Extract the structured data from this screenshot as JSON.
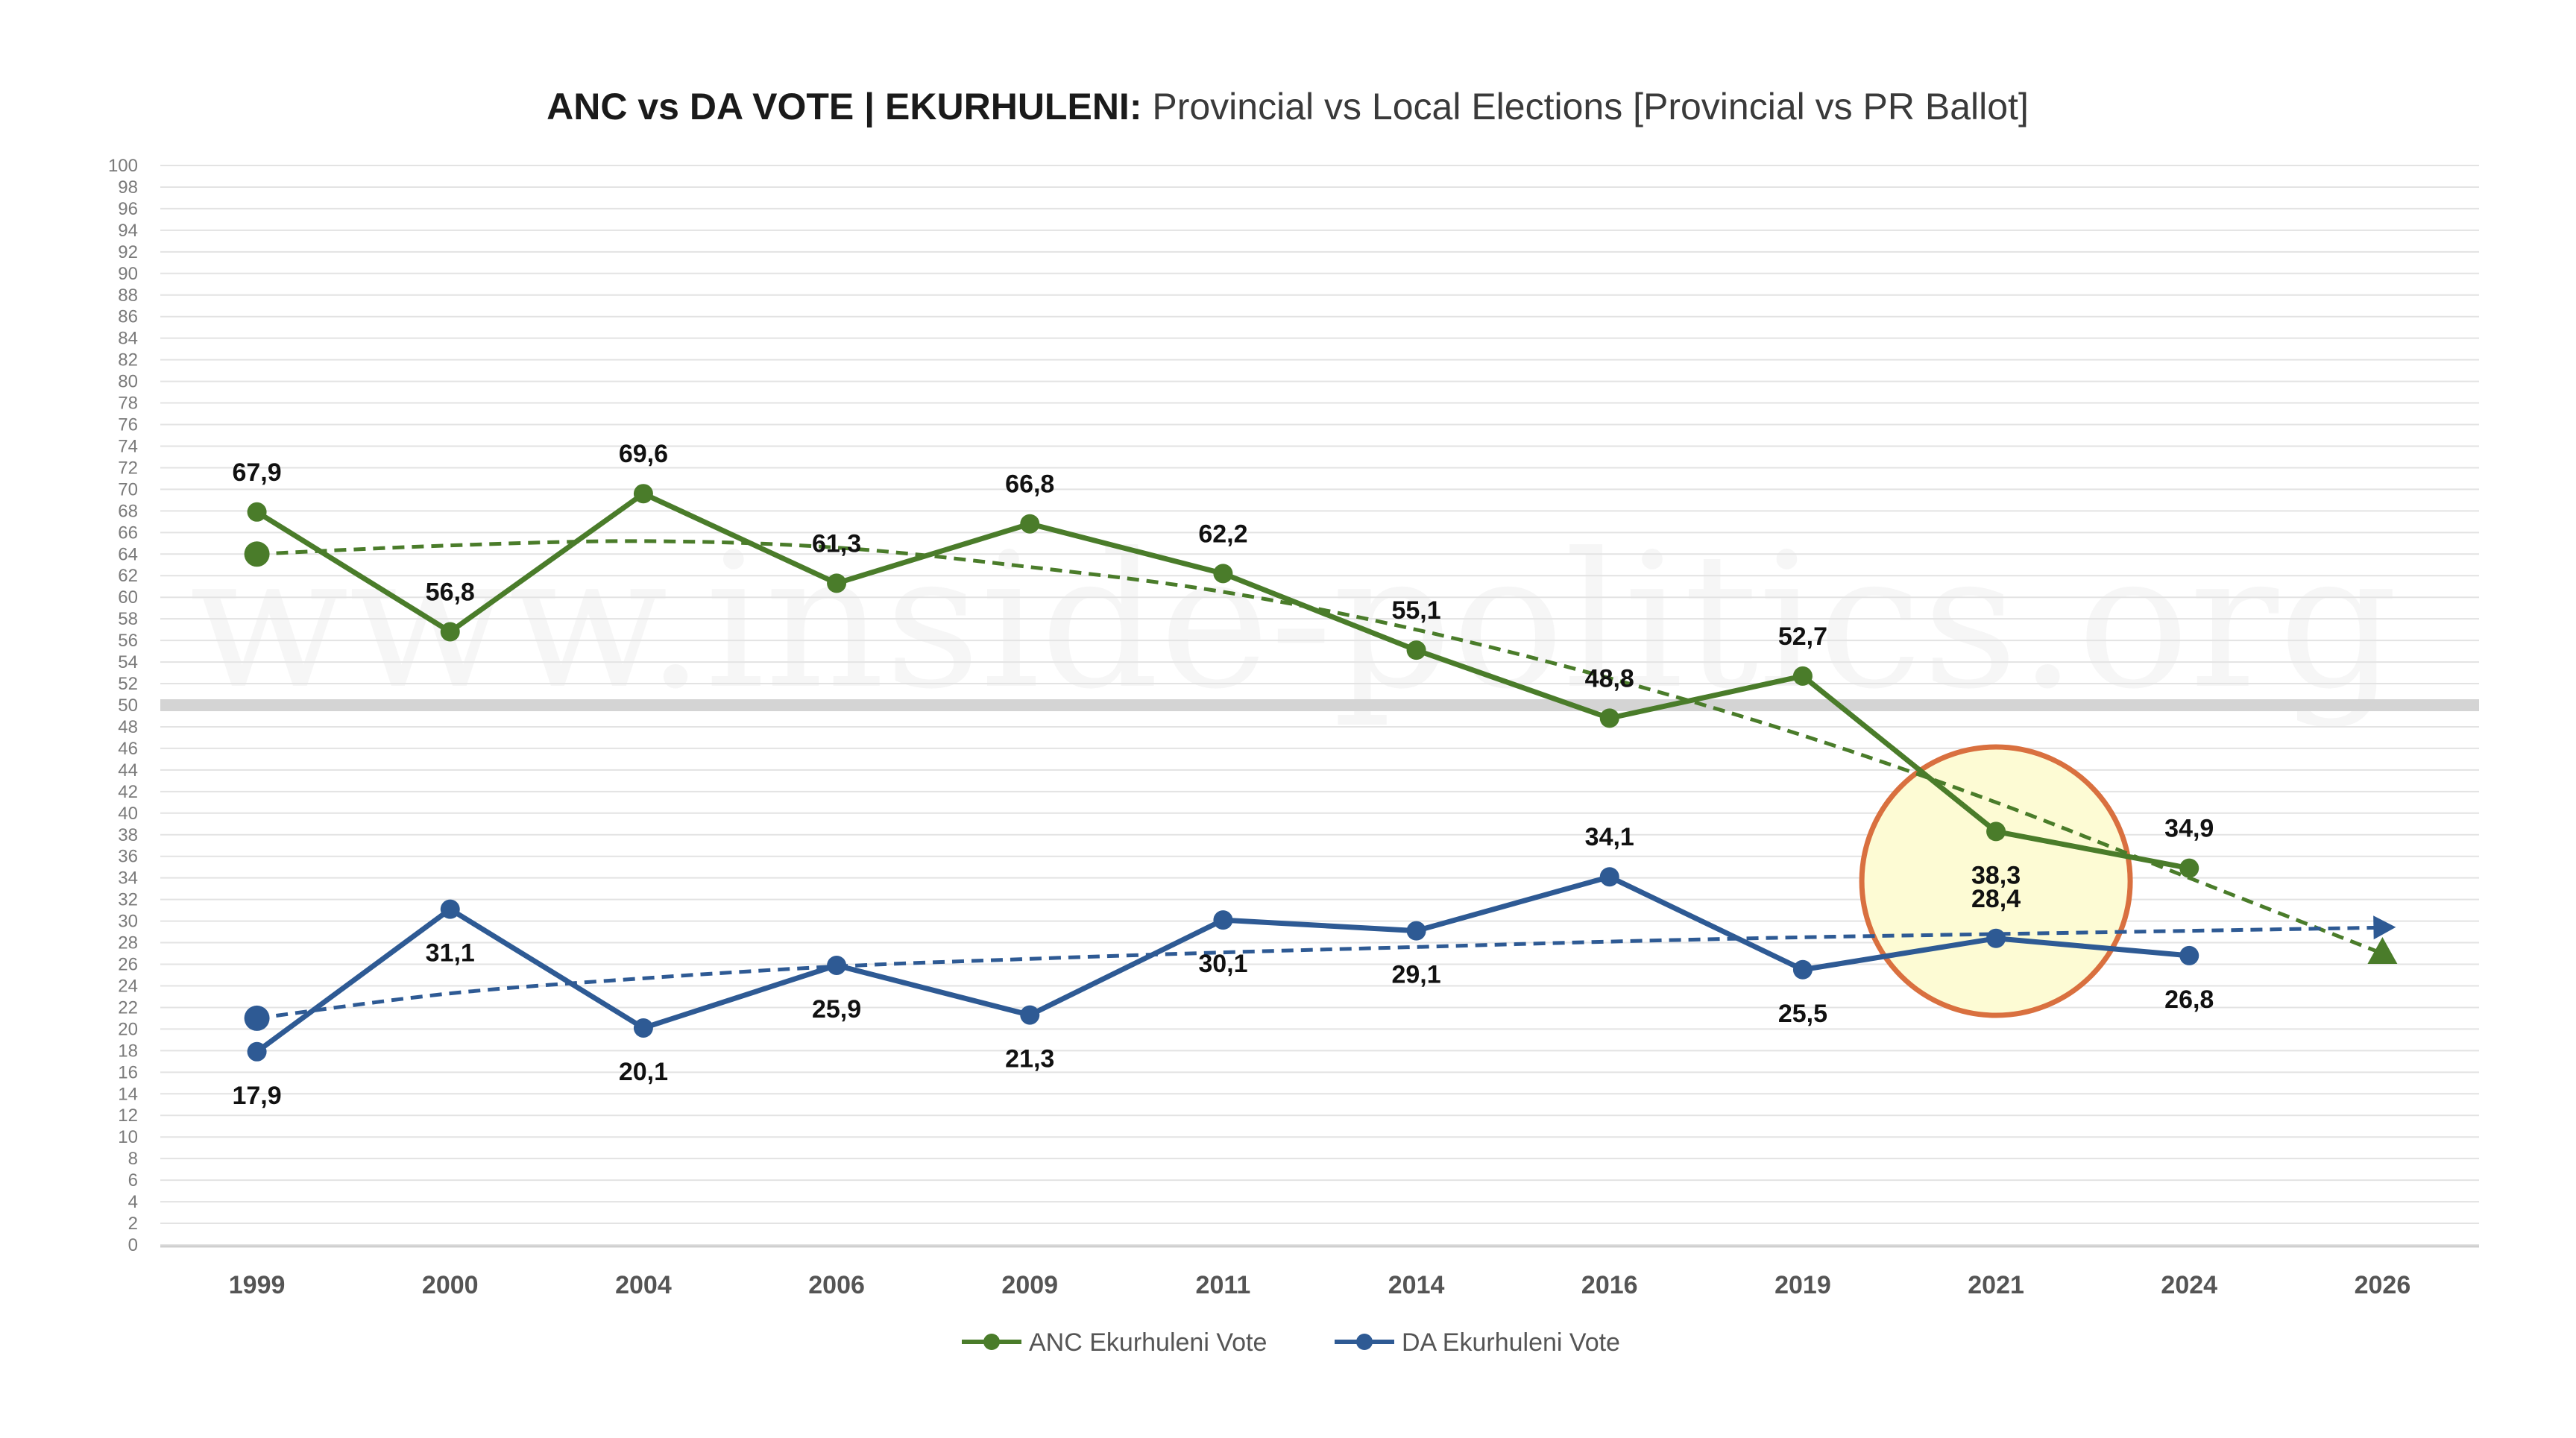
{
  "chart_data": {
    "type": "line",
    "title_bold": "ANC vs DA VOTE | EKURHULENI:",
    "title_regular": " Provincial vs Local Elections [Provincial vs PR Ballot]",
    "watermark": "www.inside-politics.org",
    "categories": [
      "1999",
      "2000",
      "2004",
      "2006",
      "2009",
      "2011",
      "2014",
      "2016",
      "2019",
      "2021",
      "2024",
      "2026"
    ],
    "ylim": [
      0,
      100
    ],
    "ytick_step": 2,
    "series": [
      {
        "name": "ANC Ekurhuleni Vote",
        "color": "#4a7c2a",
        "values": [
          67.9,
          56.8,
          69.6,
          61.3,
          66.8,
          62.2,
          55.1,
          48.8,
          52.7,
          38.3,
          34.9,
          null
        ],
        "labels": [
          "67,9",
          "56,8",
          "69,6",
          "61,3",
          "66,8",
          "62,2",
          "55,1",
          "48,8",
          "52,7",
          "38,3",
          "34,9",
          ""
        ],
        "label_pos": [
          "above",
          "above",
          "above",
          "above",
          "above",
          "above",
          "above",
          "above",
          "above",
          "below",
          "above",
          ""
        ],
        "trend": [
          64.0,
          64.8,
          65.2,
          64.6,
          62.8,
          60.5,
          57.0,
          52.5,
          47.2,
          41.0,
          34.0,
          27.0
        ],
        "trend_end_marker": "triangle"
      },
      {
        "name": "DA Ekurhuleni Vote",
        "color": "#2e5a94",
        "values": [
          17.9,
          31.1,
          20.1,
          25.9,
          21.3,
          30.1,
          29.1,
          34.1,
          25.5,
          28.4,
          26.8,
          null
        ],
        "labels": [
          "17,9",
          "31,1",
          "20,1",
          "25,9",
          "21,3",
          "30,1",
          "29,1",
          "34,1",
          "25,5",
          "28,4",
          "26,8",
          ""
        ],
        "label_pos": [
          "below",
          "below",
          "below",
          "below",
          "below",
          "below",
          "below",
          "above",
          "below",
          "above",
          "below",
          ""
        ],
        "trend": [
          21.0,
          23.3,
          24.7,
          25.8,
          26.5,
          27.1,
          27.6,
          28.1,
          28.5,
          28.8,
          29.1,
          29.4
        ],
        "trend_end_marker": "arrow"
      }
    ],
    "threshold_line": 50,
    "highlight": {
      "category": "2021",
      "value": 33.7,
      "fill": "#fdfbd4",
      "stroke": "#d9703f"
    },
    "legend_position": "bottom-center",
    "grid": true
  }
}
